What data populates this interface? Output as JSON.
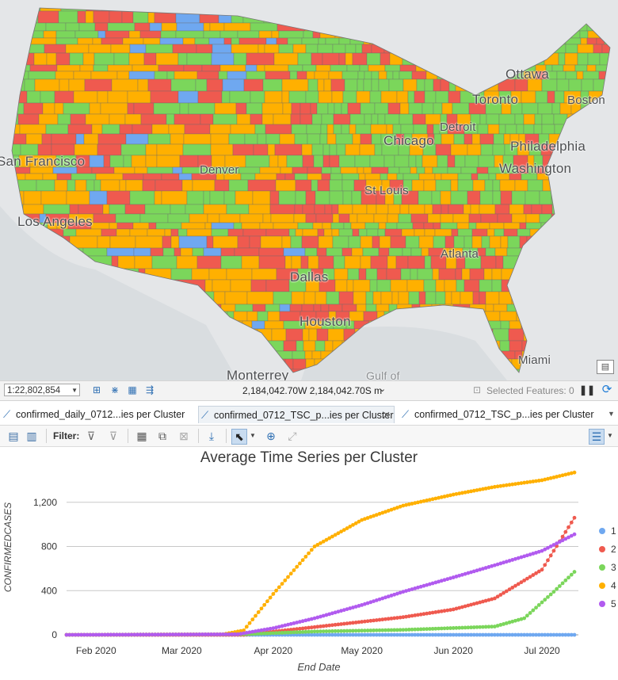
{
  "map": {
    "city_labels": [
      "Ottawa",
      "Toronto",
      "Boston",
      "Detroit",
      "Chicago",
      "Philadelphia",
      "Washington",
      "San Francisco",
      "Denver",
      "St Louis",
      "Los Angeles",
      "Atlanta",
      "Dallas",
      "Houston",
      "Miami",
      "Monterrey",
      "Gulf of"
    ],
    "cluster_colors": {
      "1": "#6fa8f0",
      "2": "#ef5a4f",
      "3": "#7bd65b",
      "4": "#ffb000",
      "5": "#b15bef"
    }
  },
  "status_bar": {
    "scale": "1:22,802,854",
    "coordinates": "2,184,042.70W 2,184,042.70S m",
    "selected_features": "Selected Features: 0"
  },
  "tabs": [
    {
      "label": "confirmed_daily_0712...ies per Cluster",
      "active": false
    },
    {
      "label": "confirmed_0712_TSC_p...ies per Cluster",
      "active": true
    },
    {
      "label": "confirmed_0712_TSC_p...ies per Cluster",
      "active": false
    }
  ],
  "toolbar": {
    "filter_label": "Filter:"
  },
  "chart_data": {
    "type": "line",
    "title": "Average Time Series per Cluster",
    "xlabel": "End Date",
    "ylabel": "CONFIRMEDCASES",
    "x_ticks": [
      "Feb 2020",
      "Mar 2020",
      "Apr 2020",
      "May 2020",
      "Jun 2020",
      "Jul 2020"
    ],
    "y_ticks": [
      "0",
      "400",
      "800",
      "1,200"
    ],
    "ylim": [
      0,
      1500
    ],
    "x_range": [
      "2020-01-22",
      "2020-07-12"
    ],
    "legend_position": "right",
    "series": [
      {
        "name": "1",
        "color": "#6fa8f0",
        "points": [
          [
            "2020-01-22",
            0
          ],
          [
            "2020-07-12",
            0
          ]
        ]
      },
      {
        "name": "2",
        "color": "#ef5a4f",
        "points": [
          [
            "2020-01-22",
            0
          ],
          [
            "2020-03-22",
            0
          ],
          [
            "2020-04-15",
            70
          ],
          [
            "2020-05-15",
            160
          ],
          [
            "2020-06-01",
            230
          ],
          [
            "2020-06-15",
            330
          ],
          [
            "2020-07-01",
            590
          ],
          [
            "2020-07-12",
            1060
          ]
        ]
      },
      {
        "name": "3",
        "color": "#7bd65b",
        "points": [
          [
            "2020-01-22",
            0
          ],
          [
            "2020-03-22",
            5
          ],
          [
            "2020-04-15",
            30
          ],
          [
            "2020-05-15",
            45
          ],
          [
            "2020-06-15",
            75
          ],
          [
            "2020-06-25",
            150
          ],
          [
            "2020-07-05",
            390
          ],
          [
            "2020-07-12",
            570
          ]
        ]
      },
      {
        "name": "4",
        "color": "#ffb000",
        "points": [
          [
            "2020-01-22",
            0
          ],
          [
            "2020-03-15",
            5
          ],
          [
            "2020-03-22",
            40
          ],
          [
            "2020-04-01",
            370
          ],
          [
            "2020-04-15",
            800
          ],
          [
            "2020-05-01",
            1040
          ],
          [
            "2020-05-15",
            1170
          ],
          [
            "2020-06-01",
            1270
          ],
          [
            "2020-06-15",
            1340
          ],
          [
            "2020-07-01",
            1400
          ],
          [
            "2020-07-12",
            1470
          ]
        ]
      },
      {
        "name": "5",
        "color": "#b15bef",
        "points": [
          [
            "2020-01-22",
            0
          ],
          [
            "2020-03-20",
            5
          ],
          [
            "2020-04-01",
            60
          ],
          [
            "2020-04-15",
            150
          ],
          [
            "2020-05-01",
            270
          ],
          [
            "2020-05-15",
            390
          ],
          [
            "2020-06-01",
            520
          ],
          [
            "2020-06-15",
            630
          ],
          [
            "2020-07-01",
            760
          ],
          [
            "2020-07-12",
            910
          ]
        ]
      }
    ]
  }
}
